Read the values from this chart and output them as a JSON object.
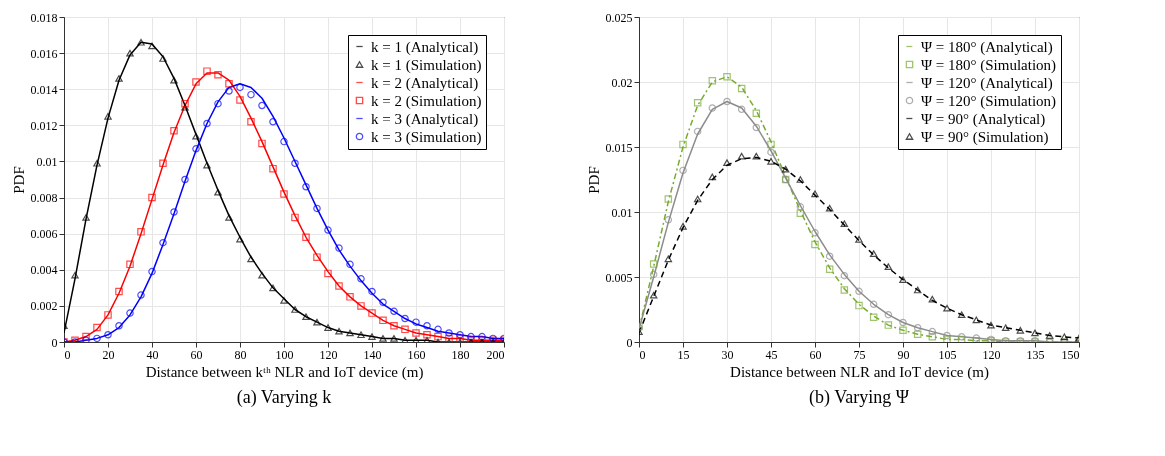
{
  "chart_data": [
    {
      "type": "line",
      "title": "(a) Varying k",
      "xlabel": "Distance between kᵗʰ NLR and IoT device (m)",
      "ylabel": "PDF",
      "x": [
        0,
        5,
        10,
        15,
        20,
        25,
        30,
        35,
        40,
        45,
        50,
        55,
        60,
        65,
        70,
        75,
        80,
        85,
        90,
        95,
        100,
        105,
        110,
        115,
        120,
        125,
        130,
        135,
        140,
        145,
        150,
        155,
        160,
        165,
        170,
        175,
        180,
        185,
        190,
        195,
        200
      ],
      "xlim": [
        0,
        200
      ],
      "xticks": [
        0,
        20,
        40,
        60,
        80,
        100,
        120,
        140,
        160,
        180,
        200
      ],
      "ylim": [
        0,
        0.018
      ],
      "yticks": [
        0,
        0.002,
        0.004,
        0.006,
        0.008,
        0.01,
        0.012,
        0.014,
        0.016,
        0.018
      ],
      "grid": true,
      "legend": "top right",
      "series": [
        {
          "name": "k = 1 (Analytical)",
          "type": "line",
          "color": "#000000",
          "line_style": "solid",
          "marker": "none",
          "values": [
            0.0005,
            0.0035,
            0.0068,
            0.0098,
            0.0124,
            0.0145,
            0.0159,
            0.0166,
            0.0165,
            0.0158,
            0.0146,
            0.0131,
            0.0115,
            0.0099,
            0.0084,
            0.007,
            0.0058,
            0.0047,
            0.0038,
            0.003,
            0.0024,
            0.0018,
            0.0014,
            0.0011,
            0.0008,
            0.0006,
            0.0005,
            0.0004,
            0.0003,
            0.0002,
            0.0002,
            0.0001,
            0.0001,
            0.0001,
            0,
            0,
            0,
            0,
            0,
            0,
            0
          ]
        },
        {
          "name": "k = 1 (Simulation)",
          "type": "scatter",
          "color": "#000000",
          "marker": "triangle",
          "values": [
            0.0009,
            0.0037,
            0.0069,
            0.0099,
            0.0125,
            0.0146,
            0.016,
            0.0166,
            0.0164,
            0.0157,
            0.0145,
            0.013,
            0.0114,
            0.0098,
            0.0083,
            0.0069,
            0.0057,
            0.0046,
            0.0037,
            0.003,
            0.0023,
            0.0018,
            0.0014,
            0.0011,
            0.0008,
            0.0006,
            0.0005,
            0.0004,
            0.0003,
            0.0002,
            0.0002,
            0.0001,
            0.0001,
            0.0001,
            0,
            0,
            0,
            0,
            0,
            0,
            0
          ]
        },
        {
          "name": "k = 2 (Analytical)",
          "type": "line",
          "color": "#ff0000",
          "line_style": "solid",
          "marker": "none",
          "values": [
            0,
            0.0001,
            0.0003,
            0.0007,
            0.0015,
            0.0027,
            0.0042,
            0.006,
            0.0079,
            0.0098,
            0.0116,
            0.0131,
            0.0143,
            0.0149,
            0.0149,
            0.0145,
            0.0136,
            0.0124,
            0.0111,
            0.0097,
            0.0083,
            0.007,
            0.0058,
            0.0048,
            0.0039,
            0.0031,
            0.0025,
            0.002,
            0.0016,
            0.0012,
            0.0009,
            0.0007,
            0.0005,
            0.0004,
            0.0003,
            0.0002,
            0.0002,
            0.0001,
            0.0001,
            0.0001,
            0.0001
          ]
        },
        {
          "name": "k = 2 (Simulation)",
          "type": "scatter",
          "color": "#ff0000",
          "marker": "square",
          "values": [
            0,
            0.0001,
            0.0003,
            0.0008,
            0.0015,
            0.0028,
            0.0043,
            0.0061,
            0.008,
            0.0099,
            0.0117,
            0.0132,
            0.0144,
            0.015,
            0.0148,
            0.0143,
            0.0134,
            0.0122,
            0.011,
            0.0096,
            0.0082,
            0.0069,
            0.0058,
            0.0047,
            0.0038,
            0.0031,
            0.0025,
            0.002,
            0.0016,
            0.0012,
            0.0009,
            0.0007,
            0.0005,
            0.0004,
            0.0003,
            0.0002,
            0.0002,
            0.0001,
            0.0001,
            0.0001,
            0.0001
          ]
        },
        {
          "name": "k = 3 (Analytical)",
          "type": "line",
          "color": "#0000ff",
          "line_style": "solid",
          "marker": "none",
          "values": [
            0,
            0,
            0.0001,
            0.0002,
            0.0004,
            0.0008,
            0.0015,
            0.0025,
            0.0038,
            0.0054,
            0.0071,
            0.0089,
            0.0106,
            0.0121,
            0.0133,
            0.0141,
            0.0143,
            0.0141,
            0.0135,
            0.0125,
            0.0113,
            0.01,
            0.0087,
            0.0074,
            0.0062,
            0.0051,
            0.0042,
            0.0034,
            0.0027,
            0.0021,
            0.0017,
            0.0013,
            0.001,
            0.0008,
            0.0006,
            0.0005,
            0.0004,
            0.0003,
            0.0003,
            0.0002,
            0.0002
          ]
        },
        {
          "name": "k = 3 (Simulation)",
          "type": "scatter",
          "color": "#0000ff",
          "marker": "circle",
          "values": [
            0,
            0,
            0.0001,
            0.0002,
            0.0004,
            0.0009,
            0.0016,
            0.0026,
            0.0039,
            0.0055,
            0.0072,
            0.009,
            0.0107,
            0.0121,
            0.0132,
            0.0139,
            0.0141,
            0.0137,
            0.0131,
            0.0122,
            0.0111,
            0.0099,
            0.0086,
            0.0074,
            0.0062,
            0.0052,
            0.0043,
            0.0035,
            0.0028,
            0.0022,
            0.0017,
            0.0013,
            0.0011,
            0.0009,
            0.0007,
            0.0005,
            0.0004,
            0.0003,
            0.0003,
            0.0002,
            0.0002
          ]
        }
      ]
    },
    {
      "type": "line",
      "title": "(b) Varying Ψ",
      "xlabel": "Distance between NLR and IoT device (m)",
      "ylabel": "PDF",
      "x": [
        0,
        5,
        10,
        15,
        20,
        25,
        30,
        35,
        40,
        45,
        50,
        55,
        60,
        65,
        70,
        75,
        80,
        85,
        90,
        95,
        100,
        105,
        110,
        115,
        120,
        125,
        130,
        135,
        140,
        145,
        150
      ],
      "xlim": [
        0,
        150
      ],
      "xticks": [
        0,
        15,
        30,
        45,
        60,
        75,
        90,
        105,
        120,
        135,
        150
      ],
      "ylim": [
        0,
        0.025
      ],
      "yticks": [
        0,
        0.005,
        0.01,
        0.015,
        0.02,
        0.025
      ],
      "grid": true,
      "legend": "top right",
      "series": [
        {
          "name": "Ψ = 180° (Analytical)",
          "type": "line",
          "color": "#77ac30",
          "line_style": "dashdot",
          "marker": "none",
          "values": [
            0.001,
            0.0058,
            0.0108,
            0.015,
            0.0182,
            0.02,
            0.0204,
            0.0196,
            0.0178,
            0.0154,
            0.0127,
            0.0101,
            0.0077,
            0.0057,
            0.0041,
            0.0029,
            0.002,
            0.0013,
            0.0009,
            0.0006,
            0.0004,
            0.0002,
            0.0002,
            0.0001,
            0.0001,
            0,
            0,
            0,
            0,
            0,
            0
          ]
        },
        {
          "name": "Ψ = 180° (Simulation)",
          "type": "scatter",
          "color": "#77ac30",
          "marker": "square",
          "values": [
            0.0012,
            0.006,
            0.011,
            0.0152,
            0.0184,
            0.0201,
            0.0204,
            0.0195,
            0.0176,
            0.0152,
            0.0125,
            0.0099,
            0.0075,
            0.0056,
            0.004,
            0.0028,
            0.0019,
            0.0013,
            0.0009,
            0.0006,
            0.0004,
            0.0002,
            0.0002,
            0.0001,
            0.0001,
            0,
            0,
            0,
            0,
            0,
            0
          ]
        },
        {
          "name": "Ψ = 120° (Analytical)",
          "type": "line",
          "color": "#8c8c8c",
          "line_style": "solid",
          "marker": "none",
          "values": [
            0.001,
            0.005,
            0.0092,
            0.013,
            0.016,
            0.0179,
            0.0185,
            0.018,
            0.0166,
            0.0147,
            0.0126,
            0.0105,
            0.0085,
            0.0067,
            0.0052,
            0.0039,
            0.0029,
            0.0021,
            0.0015,
            0.0011,
            0.0008,
            0.0005,
            0.0004,
            0.0003,
            0.0002,
            0.0001,
            0.0001,
            0.0001,
            0,
            0,
            0
          ]
        },
        {
          "name": "Ψ = 120° (Simulation)",
          "type": "scatter",
          "color": "#8c8c8c",
          "marker": "circle",
          "values": [
            0.0011,
            0.0052,
            0.0094,
            0.0132,
            0.0162,
            0.018,
            0.0185,
            0.0179,
            0.0165,
            0.0146,
            0.0125,
            0.0104,
            0.0084,
            0.0066,
            0.0051,
            0.0039,
            0.0029,
            0.0021,
            0.0015,
            0.0011,
            0.0008,
            0.0005,
            0.0004,
            0.0003,
            0.0002,
            0.0001,
            0.0001,
            0.0001,
            0,
            0,
            0
          ]
        },
        {
          "name": "Ψ = 90° (Analytical)",
          "type": "line",
          "color": "#000000",
          "line_style": "dashed",
          "marker": "none",
          "values": [
            0.0007,
            0.0035,
            0.0063,
            0.0088,
            0.0109,
            0.0125,
            0.0136,
            0.0141,
            0.0142,
            0.0139,
            0.0133,
            0.0124,
            0.0113,
            0.0102,
            0.009,
            0.0078,
            0.0067,
            0.0057,
            0.0048,
            0.004,
            0.0032,
            0.0026,
            0.0021,
            0.0017,
            0.0013,
            0.0011,
            0.0009,
            0.0007,
            0.0005,
            0.0004,
            0.0003
          ]
        },
        {
          "name": "Ψ = 90° (Simulation)",
          "type": "scatter",
          "color": "#000000",
          "marker": "triangle",
          "values": [
            0.0008,
            0.0036,
            0.0064,
            0.0089,
            0.011,
            0.0127,
            0.0138,
            0.0143,
            0.0143,
            0.0139,
            0.0133,
            0.0125,
            0.0114,
            0.0103,
            0.0091,
            0.0079,
            0.0068,
            0.0058,
            0.0048,
            0.004,
            0.0033,
            0.0026,
            0.0021,
            0.0017,
            0.0013,
            0.0011,
            0.0009,
            0.0007,
            0.0005,
            0.0004,
            0.0003
          ]
        }
      ]
    }
  ]
}
